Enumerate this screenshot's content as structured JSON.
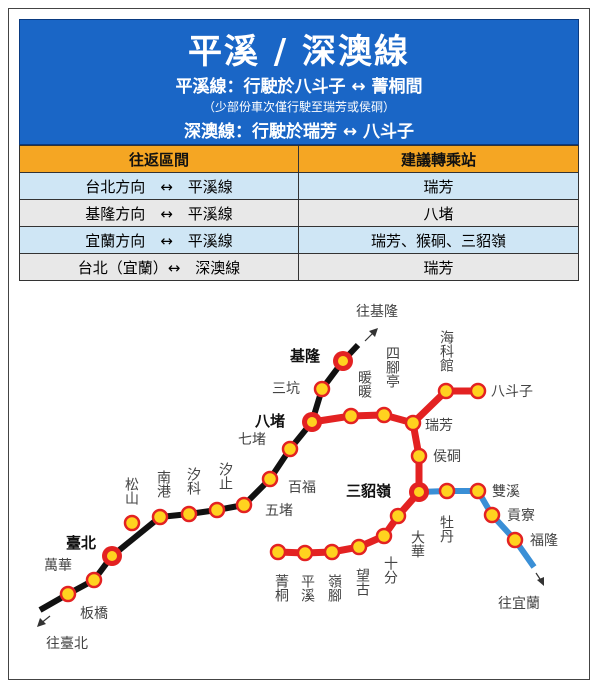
{
  "header": {
    "title": "平溪 / 深澳線",
    "pingxi_service": "平溪線：行駛於八斗子 ↔ 菁桐間",
    "pingxi_note": "（少部份車次僅行駛至瑞芳或侯硐）",
    "shenao_service": "深澳線：行駛於瑞芳 ↔ 八斗子"
  },
  "table": {
    "headers": [
      "往返區間",
      "建議轉乘站"
    ],
    "rows": [
      {
        "route": "台北方向　↔　平溪線",
        "transfer": "瑞芳"
      },
      {
        "route": "基隆方向　↔　平溪線",
        "transfer": "八堵"
      },
      {
        "route": "宜蘭方向　↔　平溪線",
        "transfer": "瑞芳、猴硐、三貂嶺"
      },
      {
        "route": "台北（宜蘭）↔　深澳線",
        "transfer": "瑞芳"
      }
    ]
  },
  "colors": {
    "header_blue": "#1a66c6",
    "table_header_orange": "#f5a623",
    "row_blue": "#cfe6f5",
    "row_grey": "#e8e8e8",
    "main_line": "#111111",
    "pingxi_shenao_line": "#e32222",
    "yilan_line": "#3a8fd6",
    "station_fill": "#ffd21f"
  },
  "map": {
    "directions": {
      "keelung": "往基隆",
      "taipei": "往臺北",
      "yilan": "往宜蘭"
    },
    "stations": {
      "keelung": "基隆",
      "sankeng": "三坑",
      "badu": "八堵",
      "qidu": "七堵",
      "baifu": "百福",
      "wudu": "五堵",
      "xizhi": "汐止",
      "xike": "汐科",
      "nangang": "南港",
      "songshan": "松山",
      "taipei": "臺北",
      "wanhua": "萬華",
      "banqiao": "板橋",
      "nuannuan": "暖暖",
      "sijiaoting": "四腳亭",
      "ruifang": "瑞芳",
      "haikeguan": "海科館",
      "badouzi": "八斗子",
      "houtong": "侯硐",
      "sandiaoling": "三貂嶺",
      "shuangxi": "雙溪",
      "gongliao": "貢寮",
      "fulong": "福隆",
      "mudan": "牡丹",
      "dahua": "大華",
      "shifen": "十分",
      "wanggu": "望古",
      "lingjiao": "嶺腳",
      "pingxi": "平溪",
      "jingtong": "菁桐"
    }
  }
}
